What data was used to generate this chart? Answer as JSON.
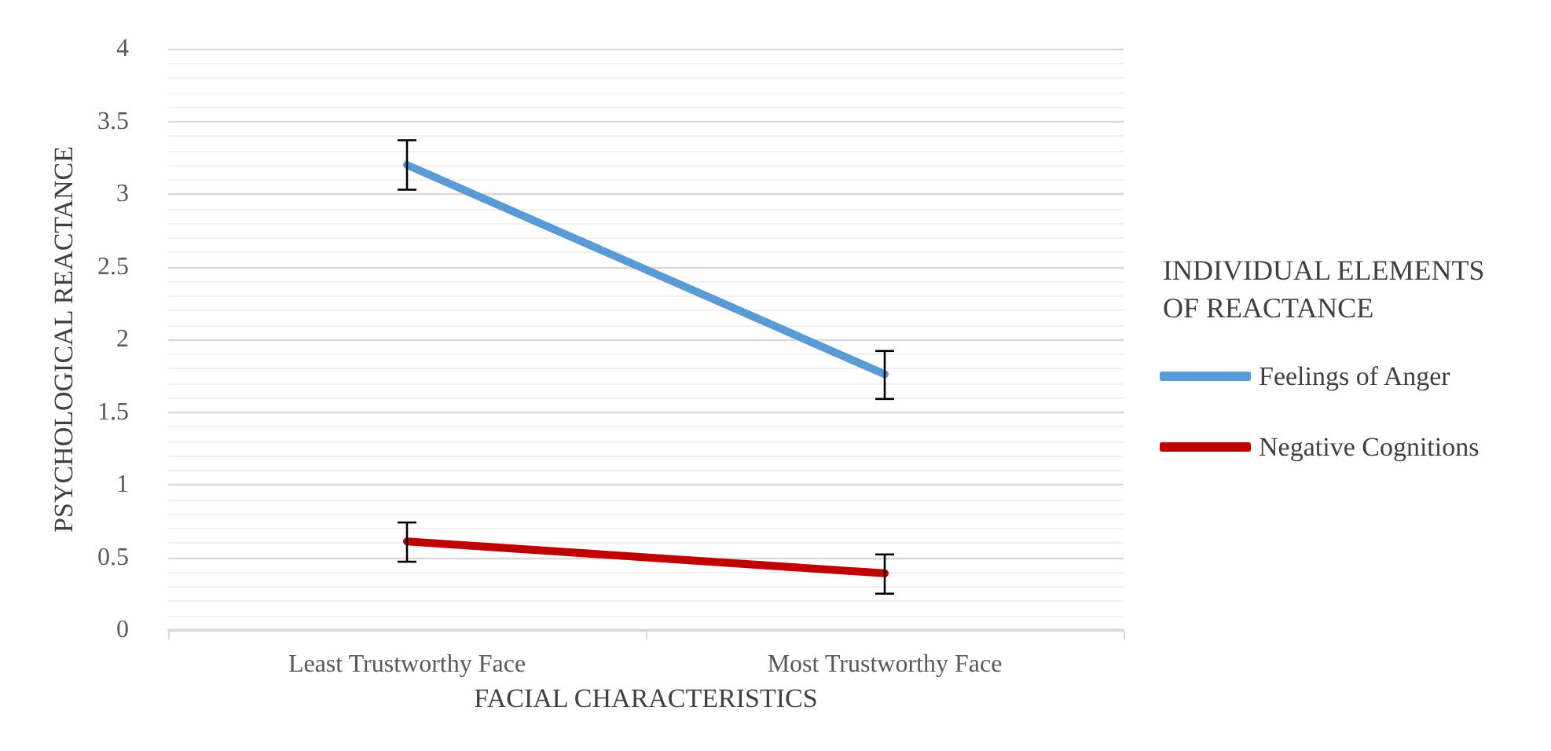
{
  "chart_data": {
    "type": "line",
    "xlabel": "FACIAL CHARACTERISTICS",
    "ylabel": "PSYCHOLOGICAL REACTANCE",
    "legend_title": "INDIVIDUAL ELEMENTS OF REACTANCE",
    "categories": [
      "Least Trustworthy Face",
      "Most Trustworthy Face"
    ],
    "series": [
      {
        "name": "Feelings of Anger",
        "color": "#5b9bd5",
        "values": [
          3.2,
          1.76
        ],
        "errors": [
          [
            3.03,
            3.37
          ],
          [
            1.59,
            1.92
          ]
        ]
      },
      {
        "name": "Negative Cognitions",
        "color": "#c00000",
        "values": [
          0.61,
          0.39
        ],
        "errors": [
          [
            0.47,
            0.74
          ],
          [
            0.25,
            0.52
          ]
        ]
      }
    ],
    "ylim": [
      0,
      4
    ],
    "yticks": [
      0,
      0.5,
      1,
      1.5,
      2,
      2.5,
      3,
      3.5,
      4
    ],
    "grid": "y",
    "legend": "right",
    "marker": "none",
    "line_style": "solid"
  }
}
